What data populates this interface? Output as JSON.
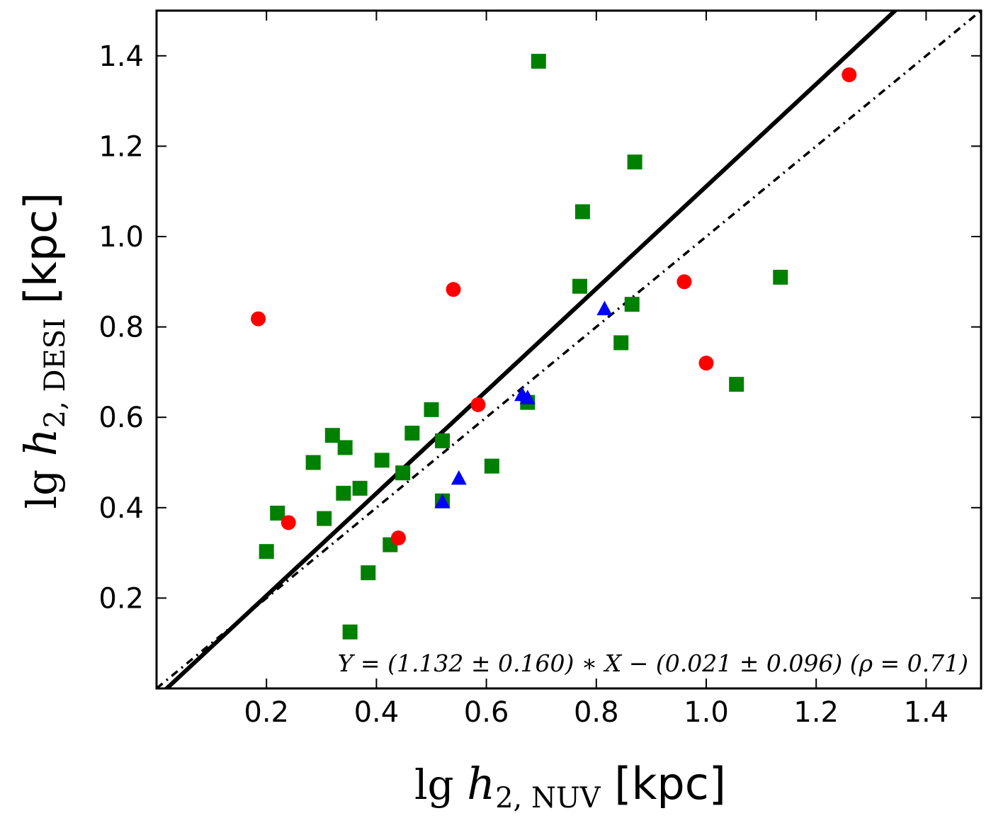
{
  "chart_data": {
    "type": "scatter",
    "title": "",
    "xlabel": {
      "prefix": "lg ",
      "var": "h",
      "sub": "2, NUV",
      "unit": "[kpc]"
    },
    "ylabel": {
      "prefix": "lg ",
      "var": "h",
      "sub": "2, DESI",
      "unit": "[kpc]"
    },
    "xlim": [
      0.0,
      1.5
    ],
    "ylim": [
      0.0,
      1.5
    ],
    "xticks": [
      0.2,
      0.4,
      0.6,
      0.8,
      1.0,
      1.2,
      1.4
    ],
    "yticks": [
      0.2,
      0.4,
      0.6,
      0.8,
      1.0,
      1.2,
      1.4
    ],
    "xtick_labels": [
      "0.2",
      "0.4",
      "0.6",
      "0.8",
      "1.0",
      "1.2",
      "1.4"
    ],
    "ytick_labels": [
      "0.2",
      "0.4",
      "0.6",
      "0.8",
      "1.0",
      "1.2",
      "1.4"
    ],
    "grid": false,
    "series": [
      {
        "name": "green squares",
        "marker": "square",
        "color": "#008000",
        "points": [
          [
            0.695,
            1.388
          ],
          [
            0.87,
            1.165
          ],
          [
            0.775,
            1.055
          ],
          [
            0.77,
            0.89
          ],
          [
            0.865,
            0.85
          ],
          [
            0.845,
            0.765
          ],
          [
            1.135,
            0.91
          ],
          [
            1.055,
            0.673
          ],
          [
            0.675,
            0.633
          ],
          [
            0.61,
            0.492
          ],
          [
            0.52,
            0.415
          ],
          [
            0.52,
            0.548
          ],
          [
            0.5,
            0.617
          ],
          [
            0.465,
            0.565
          ],
          [
            0.448,
            0.477
          ],
          [
            0.41,
            0.505
          ],
          [
            0.37,
            0.443
          ],
          [
            0.32,
            0.56
          ],
          [
            0.343,
            0.533
          ],
          [
            0.34,
            0.432
          ],
          [
            0.285,
            0.5
          ],
          [
            0.305,
            0.376
          ],
          [
            0.22,
            0.388
          ],
          [
            0.2,
            0.303
          ],
          [
            0.425,
            0.318
          ],
          [
            0.385,
            0.256
          ],
          [
            0.352,
            0.125
          ]
        ]
      },
      {
        "name": "red circles",
        "marker": "circle",
        "color": "#ff0000",
        "points": [
          [
            1.26,
            1.358
          ],
          [
            0.96,
            0.9
          ],
          [
            1.0,
            0.72
          ],
          [
            0.54,
            0.883
          ],
          [
            0.185,
            0.818
          ],
          [
            0.585,
            0.628
          ],
          [
            0.44,
            0.333
          ],
          [
            0.24,
            0.367
          ]
        ]
      },
      {
        "name": "blue triangles",
        "marker": "triangle",
        "color": "#0000ff",
        "points": [
          [
            0.815,
            0.84
          ],
          [
            0.665,
            0.65
          ],
          [
            0.675,
            0.643
          ],
          [
            0.55,
            0.465
          ],
          [
            0.52,
            0.413
          ]
        ]
      }
    ],
    "lines": [
      {
        "name": "fit",
        "style": "solid",
        "color": "#000000",
        "slope": 1.132,
        "intercept": -0.021
      },
      {
        "name": "one-to-one",
        "style": "dash-dot",
        "color": "#000000",
        "slope": 1.0,
        "intercept": 0.0
      }
    ],
    "annotation": "Y = (1.132 ± 0.160) ∗ X − (0.021 ± 0.096) (ρ = 0.71)"
  }
}
